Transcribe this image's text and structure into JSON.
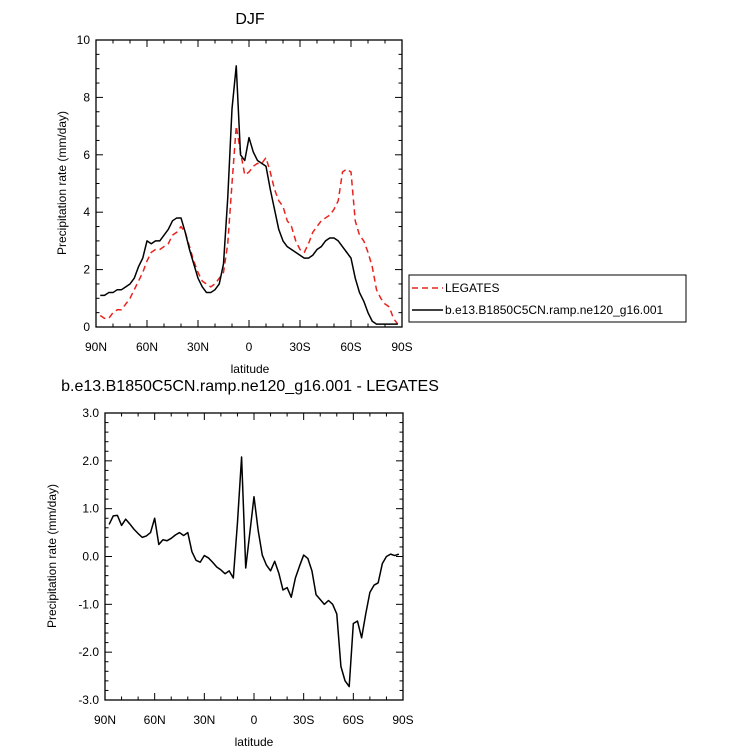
{
  "chart_data": [
    {
      "type": "line",
      "title": "DJF",
      "xlabel": "latitude",
      "ylabel": "Precipitation rate (mm/day)",
      "x_ticks": [
        "90N",
        "60N",
        "30N",
        "0",
        "30S",
        "60S",
        "90S"
      ],
      "y_ticks": [
        "0",
        "2",
        "4",
        "6",
        "8",
        "10"
      ],
      "xlim": [
        90,
        -90
      ],
      "ylim": [
        0,
        10
      ],
      "legend_position": "right",
      "series": [
        {
          "name": "LEGATES",
          "color": "#e8231f",
          "dash": "dashed",
          "x": [
            87.5,
            85,
            82.5,
            80,
            77.5,
            75,
            72.5,
            70,
            67.5,
            65,
            62.5,
            60,
            57.5,
            55,
            52.5,
            50,
            47.5,
            45,
            42.5,
            40,
            37.5,
            35,
            32.5,
            30,
            27.5,
            25,
            22.5,
            20,
            17.5,
            15,
            12.5,
            10,
            7.5,
            5,
            2.5,
            0,
            -2.5,
            -5,
            -7.5,
            -10,
            -12.5,
            -15,
            -17.5,
            -20,
            -22.5,
            -25,
            -27.5,
            -30,
            -32.5,
            -35,
            -37.5,
            -40,
            -42.5,
            -45,
            -47.5,
            -50,
            -52.5,
            -55,
            -57.5,
            -60,
            -62.5,
            -65,
            -67.5,
            -70,
            -72.5,
            -75,
            -77.5,
            -80,
            -82.5,
            -85,
            -87.5
          ],
          "y": [
            0.4,
            0.3,
            0.3,
            0.5,
            0.6,
            0.6,
            0.8,
            1.0,
            1.3,
            1.6,
            1.9,
            2.3,
            2.6,
            2.7,
            2.7,
            2.8,
            2.9,
            3.2,
            3.3,
            3.5,
            3.3,
            2.8,
            2.3,
            1.9,
            1.6,
            1.5,
            1.4,
            1.5,
            1.7,
            1.9,
            2.9,
            5.0,
            7.0,
            6.1,
            5.3,
            5.4,
            5.6,
            5.7,
            5.7,
            5.9,
            5.4,
            4.8,
            4.4,
            4.2,
            3.7,
            3.5,
            3.0,
            2.7,
            2.6,
            2.9,
            3.3,
            3.5,
            3.7,
            3.8,
            3.9,
            4.1,
            4.4,
            5.4,
            5.5,
            5.4,
            3.7,
            3.2,
            3.0,
            2.6,
            2.1,
            1.3,
            1.0,
            0.8,
            0.7,
            0.3,
            0.1
          ]
        },
        {
          "name": "b.e13.B1850C5CN.ramp.ne120_g16.001",
          "color": "#000000",
          "dash": "solid",
          "x": [
            87.5,
            85,
            82.5,
            80,
            77.5,
            75,
            72.5,
            70,
            67.5,
            65,
            62.5,
            60,
            57.5,
            55,
            52.5,
            50,
            47.5,
            45,
            42.5,
            40,
            37.5,
            35,
            32.5,
            30,
            27.5,
            25,
            22.5,
            20,
            17.5,
            15,
            12.5,
            10,
            7.5,
            5,
            2.5,
            0,
            -2.5,
            -5,
            -7.5,
            -10,
            -12.5,
            -15,
            -17.5,
            -20,
            -22.5,
            -25,
            -27.5,
            -30,
            -32.5,
            -35,
            -37.5,
            -40,
            -42.5,
            -45,
            -47.5,
            -50,
            -52.5,
            -55,
            -57.5,
            -60,
            -62.5,
            -65,
            -67.5,
            -70,
            -72.5,
            -75,
            -77.5,
            -80,
            -82.5,
            -85,
            -87.5
          ],
          "y": [
            1.1,
            1.1,
            1.2,
            1.2,
            1.3,
            1.3,
            1.4,
            1.5,
            1.7,
            2.1,
            2.4,
            3.0,
            2.9,
            3.0,
            3.0,
            3.2,
            3.4,
            3.7,
            3.8,
            3.8,
            3.3,
            2.7,
            2.2,
            1.7,
            1.4,
            1.2,
            1.2,
            1.3,
            1.5,
            2.2,
            4.5,
            7.6,
            9.1,
            6.0,
            5.8,
            6.6,
            6.1,
            5.8,
            5.7,
            5.6,
            4.8,
            4.1,
            3.4,
            3.0,
            2.8,
            2.7,
            2.6,
            2.5,
            2.4,
            2.4,
            2.5,
            2.7,
            2.8,
            3.0,
            3.1,
            3.1,
            3.0,
            2.8,
            2.6,
            2.4,
            1.7,
            1.2,
            0.9,
            0.5,
            0.2,
            0.1,
            0.1,
            0.1,
            0.1,
            0.1,
            0.1
          ]
        }
      ]
    },
    {
      "type": "line",
      "title": "b.e13.B1850C5CN.ramp.ne120_g16.001 - LEGATES",
      "xlabel": "latitude",
      "ylabel": "Precipitation rate (mm/day)",
      "x_ticks": [
        "90N",
        "60N",
        "30N",
        "0",
        "30S",
        "60S",
        "90S"
      ],
      "y_ticks": [
        "-3.0",
        "-2.0",
        "-1.0",
        "0.0",
        "1.0",
        "2.0",
        "3.0"
      ],
      "xlim": [
        90,
        -90
      ],
      "ylim": [
        -3,
        3
      ],
      "series": [
        {
          "color": "#000000",
          "dash": "solid",
          "x": [
            87.5,
            85,
            82.5,
            80,
            77.5,
            75,
            72.5,
            70,
            67.5,
            65,
            62.5,
            60,
            57.5,
            55,
            52.5,
            50,
            47.5,
            45,
            42.5,
            40,
            37.5,
            35,
            32.5,
            30,
            27.5,
            25,
            22.5,
            20,
            17.5,
            15,
            12.5,
            10,
            7.5,
            5,
            2.5,
            0,
            -2.5,
            -5,
            -7.5,
            -10,
            -12.5,
            -15,
            -17.5,
            -20,
            -22.5,
            -25,
            -27.5,
            -30,
            -32.5,
            -35,
            -37.5,
            -40,
            -42.5,
            -45,
            -47.5,
            -50,
            -52.5,
            -55,
            -57.5,
            -60,
            -62.5,
            -65,
            -67.5,
            -70,
            -72.5,
            -75,
            -77.5,
            -80,
            -82.5,
            -85,
            -87.5
          ],
          "y": [
            0.67,
            0.85,
            0.86,
            0.65,
            0.78,
            0.68,
            0.57,
            0.48,
            0.4,
            0.43,
            0.5,
            0.8,
            0.25,
            0.35,
            0.33,
            0.38,
            0.45,
            0.5,
            0.44,
            0.5,
            0.1,
            -0.08,
            -0.12,
            0.02,
            -0.03,
            -0.12,
            -0.22,
            -0.28,
            -0.36,
            -0.3,
            -0.45,
            0.7,
            2.08,
            -0.24,
            0.5,
            1.25,
            0.55,
            0.03,
            -0.18,
            -0.3,
            -0.1,
            -0.35,
            -0.7,
            -0.65,
            -0.85,
            -0.45,
            -0.2,
            0.03,
            -0.04,
            -0.3,
            -0.8,
            -0.9,
            -1.0,
            -0.92,
            -1.0,
            -1.2,
            -2.3,
            -2.6,
            -2.72,
            -1.4,
            -1.35,
            -1.7,
            -1.2,
            -0.75,
            -0.6,
            -0.55,
            -0.15,
            0.0,
            0.05,
            0.02,
            0.05
          ]
        }
      ]
    }
  ]
}
